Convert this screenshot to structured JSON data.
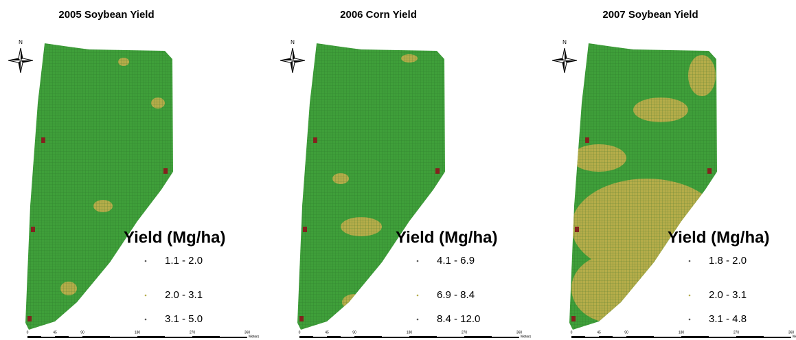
{
  "panels": [
    {
      "title": "2005 Soybean Yield",
      "north": "N",
      "legend": {
        "title": "Yield (Mg/ha)",
        "items": [
          "1.1 - 2.0",
          "2.0 - 3.1",
          "3.1 - 5.0"
        ]
      },
      "scale": {
        "ticks": [
          0,
          45,
          90,
          180,
          270,
          360
        ],
        "unit": "Meters"
      }
    },
    {
      "title": "2006 Corn Yield",
      "north": "N",
      "legend": {
        "title": "Yield (Mg/ha)",
        "items": [
          "4.1 - 6.9",
          "6.9 - 8.4",
          "8.4 - 12.0"
        ]
      },
      "scale": {
        "ticks": [
          0,
          45,
          90,
          180,
          270,
          360
        ],
        "unit": "Meters"
      }
    },
    {
      "title": "2007 Soybean Yield",
      "north": "N",
      "legend": {
        "title": "Yield (Mg/ha)",
        "items": [
          "1.8 - 2.0",
          "2.0 - 3.1",
          "3.1 - 4.8"
        ]
      },
      "scale": {
        "ticks": [
          0,
          45,
          90,
          180,
          270,
          360
        ],
        "unit": "Meters"
      }
    }
  ]
}
